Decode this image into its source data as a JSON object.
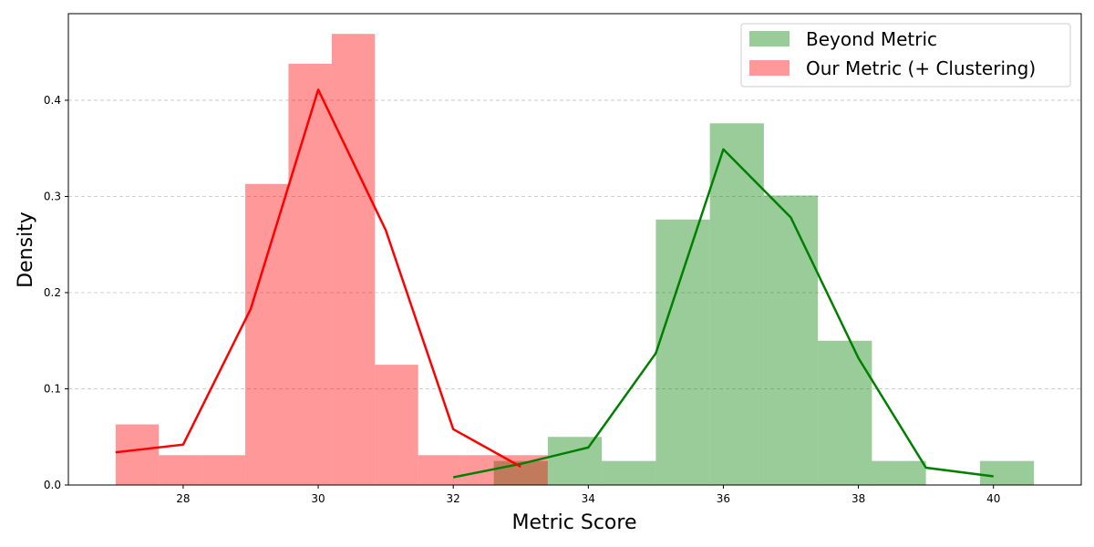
{
  "chart_data": {
    "type": "bar",
    "title": "",
    "xlabel": "Metric Score",
    "ylabel": "Density",
    "xlim": [
      26.3,
      41.3
    ],
    "ylim": [
      0,
      0.49
    ],
    "xticks": [
      28,
      30,
      32,
      34,
      36,
      38,
      40
    ],
    "yticks": [
      0.0,
      0.1,
      0.2,
      0.3,
      0.4
    ],
    "ytick_labels": [
      "0.0",
      "0.1",
      "0.2",
      "0.3",
      "0.4"
    ],
    "grid": "y-dashed",
    "legend_position": "top-right",
    "series": [
      {
        "name": "Beyond Metric",
        "kind": "histogram",
        "color": "#008000",
        "bar_alpha": 0.4,
        "bin_edges": [
          32.6,
          33.4,
          34.2,
          35.0,
          35.8,
          36.6,
          37.4,
          38.2,
          39.0,
          39.8,
          40.6
        ],
        "density": [
          0.025,
          0.05,
          0.025,
          0.276,
          0.376,
          0.301,
          0.15,
          0.025,
          0.0,
          0.025
        ],
        "curve_x": [
          32,
          33,
          34,
          35,
          36,
          37,
          38,
          39,
          40
        ],
        "curve_y": [
          0.008,
          0.022,
          0.039,
          0.137,
          0.349,
          0.278,
          0.132,
          0.018,
          0.009
        ]
      },
      {
        "name": "Our Metric (+ Clustering)",
        "kind": "histogram",
        "color": "#ff0000",
        "bar_alpha": 0.4,
        "bin_edges": [
          27.0,
          27.64,
          28.28,
          28.92,
          29.56,
          30.2,
          30.84,
          31.48,
          32.12,
          32.76,
          33.4
        ],
        "density": [
          0.063,
          0.031,
          0.031,
          0.313,
          0.438,
          0.469,
          0.125,
          0.031,
          0.031,
          0.031
        ],
        "curve_x": [
          27,
          28,
          29,
          30,
          31,
          32,
          33
        ],
        "curve_y": [
          0.034,
          0.042,
          0.183,
          0.411,
          0.265,
          0.058,
          0.019
        ]
      }
    ]
  }
}
